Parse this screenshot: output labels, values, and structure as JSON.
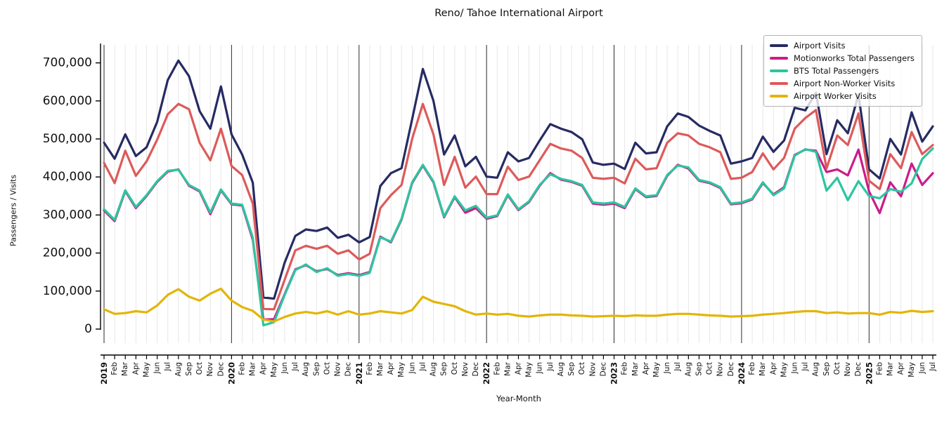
{
  "chart": {
    "title": "Reno/ Tahoe International Airport",
    "xlabel": "Year-Month",
    "ylabel": "Passengers / Visits"
  },
  "legend": {
    "entries": [
      {
        "label": "Airport Visits",
        "color": "#262b63"
      },
      {
        "label": "Motionworks Total Passengers",
        "color": "#cb1b8b"
      },
      {
        "label": "BTS Total Passengers",
        "color": "#2cc5a0"
      },
      {
        "label": "Airport Non-Worker Visits",
        "color": "#dd5a5a"
      },
      {
        "label": "Airport Worker Visits",
        "color": "#e3b505"
      }
    ]
  },
  "chart_data": {
    "type": "line",
    "title": "Reno/ Tahoe International Airport",
    "xlabel": "Year-Month",
    "ylabel": "Passengers / Visits",
    "ylim": [
      0,
      745000
    ],
    "yticks": [
      0,
      100000,
      200000,
      300000,
      400000,
      500000,
      600000,
      700000
    ],
    "grid": "light vertical line per month; dark vertical line at each January",
    "legend_position": "upper right",
    "x_tick_labels": [
      "2019",
      "Feb",
      "Mar",
      "Apr",
      "May",
      "Jun",
      "Jul",
      "Aug",
      "Sep",
      "Oct",
      "Nov",
      "Dec",
      "2020",
      "Feb",
      "Mar",
      "Apr",
      "May",
      "Jun",
      "Jul",
      "Aug",
      "Sep",
      "Oct",
      "Nov",
      "Dec",
      "2021",
      "Feb",
      "Mar",
      "Apr",
      "May",
      "Jun",
      "Jul",
      "Aug",
      "Sep",
      "Oct",
      "Nov",
      "Dec",
      "2022",
      "Feb",
      "Mar",
      "Apr",
      "May",
      "Jun",
      "Jul",
      "Aug",
      "Sep",
      "Oct",
      "Nov",
      "Dec",
      "2023",
      "Feb",
      "Mar",
      "Apr",
      "May",
      "Jun",
      "Jul",
      "Aug",
      "Sep",
      "Oct",
      "Nov",
      "Dec",
      "2024",
      "Feb",
      "Mar",
      "Apr",
      "May",
      "Jun",
      "Jul",
      "Aug",
      "Sep",
      "Oct",
      "Nov",
      "Dec",
      "2025",
      "Feb",
      "Mar",
      "Apr",
      "May",
      "Jun",
      "Jul"
    ],
    "series": [
      {
        "name": "Airport Visits",
        "color": "#262b63",
        "values": [
          490000,
          448000,
          512000,
          455000,
          478000,
          545000,
          655000,
          706000,
          665000,
          573000,
          527000,
          638000,
          512000,
          459000,
          385000,
          83000,
          80000,
          175000,
          245000,
          262000,
          258000,
          267000,
          240000,
          248000,
          228000,
          242000,
          376000,
          410000,
          423000,
          552000,
          684000,
          600000,
          459000,
          509000,
          428000,
          453000,
          401000,
          398000,
          465000,
          441000,
          450000,
          496000,
          539000,
          527000,
          518000,
          499000,
          438000,
          432000,
          435000,
          421000,
          490000,
          462000,
          465000,
          533000,
          567000,
          558000,
          535000,
          521000,
          509000,
          435000,
          441000,
          450000,
          506000,
          466000,
          496000,
          582000,
          575000,
          622000,
          460000,
          549000,
          515000,
          617000,
          420000,
          396000,
          500000,
          459000,
          570000,
          493000,
          533000
        ]
      },
      {
        "name": "Motionworks Total Passengers",
        "color": "#cb1b8b",
        "values": [
          312000,
          284000,
          363000,
          318000,
          350000,
          387000,
          414000,
          420000,
          377000,
          362000,
          302000,
          365000,
          328000,
          325000,
          235000,
          25000,
          26000,
          92000,
          157000,
          168000,
          152000,
          158000,
          142000,
          147000,
          142000,
          150000,
          243000,
          228000,
          288000,
          384000,
          430000,
          386000,
          294000,
          347000,
          306000,
          318000,
          290000,
          297000,
          352000,
          313000,
          334000,
          377000,
          410000,
          393000,
          387000,
          377000,
          330000,
          327000,
          330000,
          318000,
          368000,
          347000,
          350000,
          403000,
          432000,
          422000,
          390000,
          384000,
          371000,
          328000,
          331000,
          341000,
          384000,
          354000,
          373000,
          458000,
          472000,
          469000,
          413000,
          420000,
          404000,
          472000,
          362000,
          305000,
          386000,
          349000,
          435000,
          379000,
          410000
        ]
      },
      {
        "name": "BTS Total Passengers",
        "color": "#2cc5a0",
        "values": [
          315000,
          287000,
          365000,
          321000,
          352000,
          389000,
          416000,
          419000,
          379000,
          364000,
          306000,
          367000,
          330000,
          327000,
          240000,
          10000,
          18000,
          90000,
          155000,
          170000,
          150000,
          160000,
          140000,
          145000,
          140000,
          148000,
          241000,
          230000,
          290000,
          386000,
          432000,
          388000,
          296000,
          349000,
          312000,
          324000,
          293000,
          299000,
          354000,
          315000,
          336000,
          379000,
          407000,
          395000,
          389000,
          379000,
          333000,
          330000,
          333000,
          321000,
          370000,
          349000,
          352000,
          405000,
          430000,
          425000,
          392000,
          386000,
          373000,
          330000,
          333000,
          343000,
          386000,
          352000,
          370000,
          456000,
          473000,
          466000,
          364000,
          398000,
          339000,
          389000,
          350000,
          344000,
          368000,
          361000,
          383000,
          447000,
          475000
        ]
      },
      {
        "name": "Airport Non-Worker Visits",
        "color": "#dd5a5a",
        "values": [
          437000,
          384000,
          469000,
          403000,
          441000,
          498000,
          565000,
          592000,
          578000,
          490000,
          444000,
          527000,
          429000,
          405000,
          330000,
          53000,
          52000,
          130000,
          207000,
          219000,
          211000,
          219000,
          198000,
          207000,
          183000,
          198000,
          318000,
          352000,
          379000,
          500000,
          592000,
          512000,
          379000,
          453000,
          372000,
          401000,
          355000,
          355000,
          427000,
          392000,
          401000,
          444000,
          487000,
          475000,
          469000,
          450000,
          398000,
          395000,
          398000,
          383000,
          448000,
          420000,
          423000,
          490000,
          515000,
          509000,
          487000,
          478000,
          465000,
          395000,
          398000,
          413000,
          462000,
          420000,
          450000,
          527000,
          555000,
          576000,
          422000,
          509000,
          484000,
          567000,
          390000,
          368000,
          460000,
          423000,
          518000,
          460000,
          484000
        ]
      },
      {
        "name": "Airport Worker Visits",
        "color": "#e3b505",
        "values": [
          52000,
          40000,
          42000,
          47000,
          44000,
          62000,
          90000,
          105000,
          85000,
          75000,
          93000,
          106000,
          75000,
          58000,
          48000,
          25000,
          20000,
          32000,
          41000,
          45000,
          41000,
          47000,
          38000,
          47000,
          38000,
          41000,
          47000,
          44000,
          41000,
          50000,
          85000,
          72000,
          66000,
          60000,
          47000,
          38000,
          41000,
          38000,
          40000,
          35000,
          33000,
          36000,
          38000,
          38000,
          36000,
          35000,
          33000,
          34000,
          35000,
          34000,
          36000,
          35000,
          35000,
          38000,
          40000,
          40000,
          38000,
          36000,
          35000,
          33000,
          34000,
          35000,
          38000,
          40000,
          42000,
          45000,
          47000,
          47000,
          42000,
          44000,
          41000,
          42000,
          42000,
          38000,
          45000,
          43000,
          48000,
          45000,
          47000
        ]
      }
    ]
  }
}
